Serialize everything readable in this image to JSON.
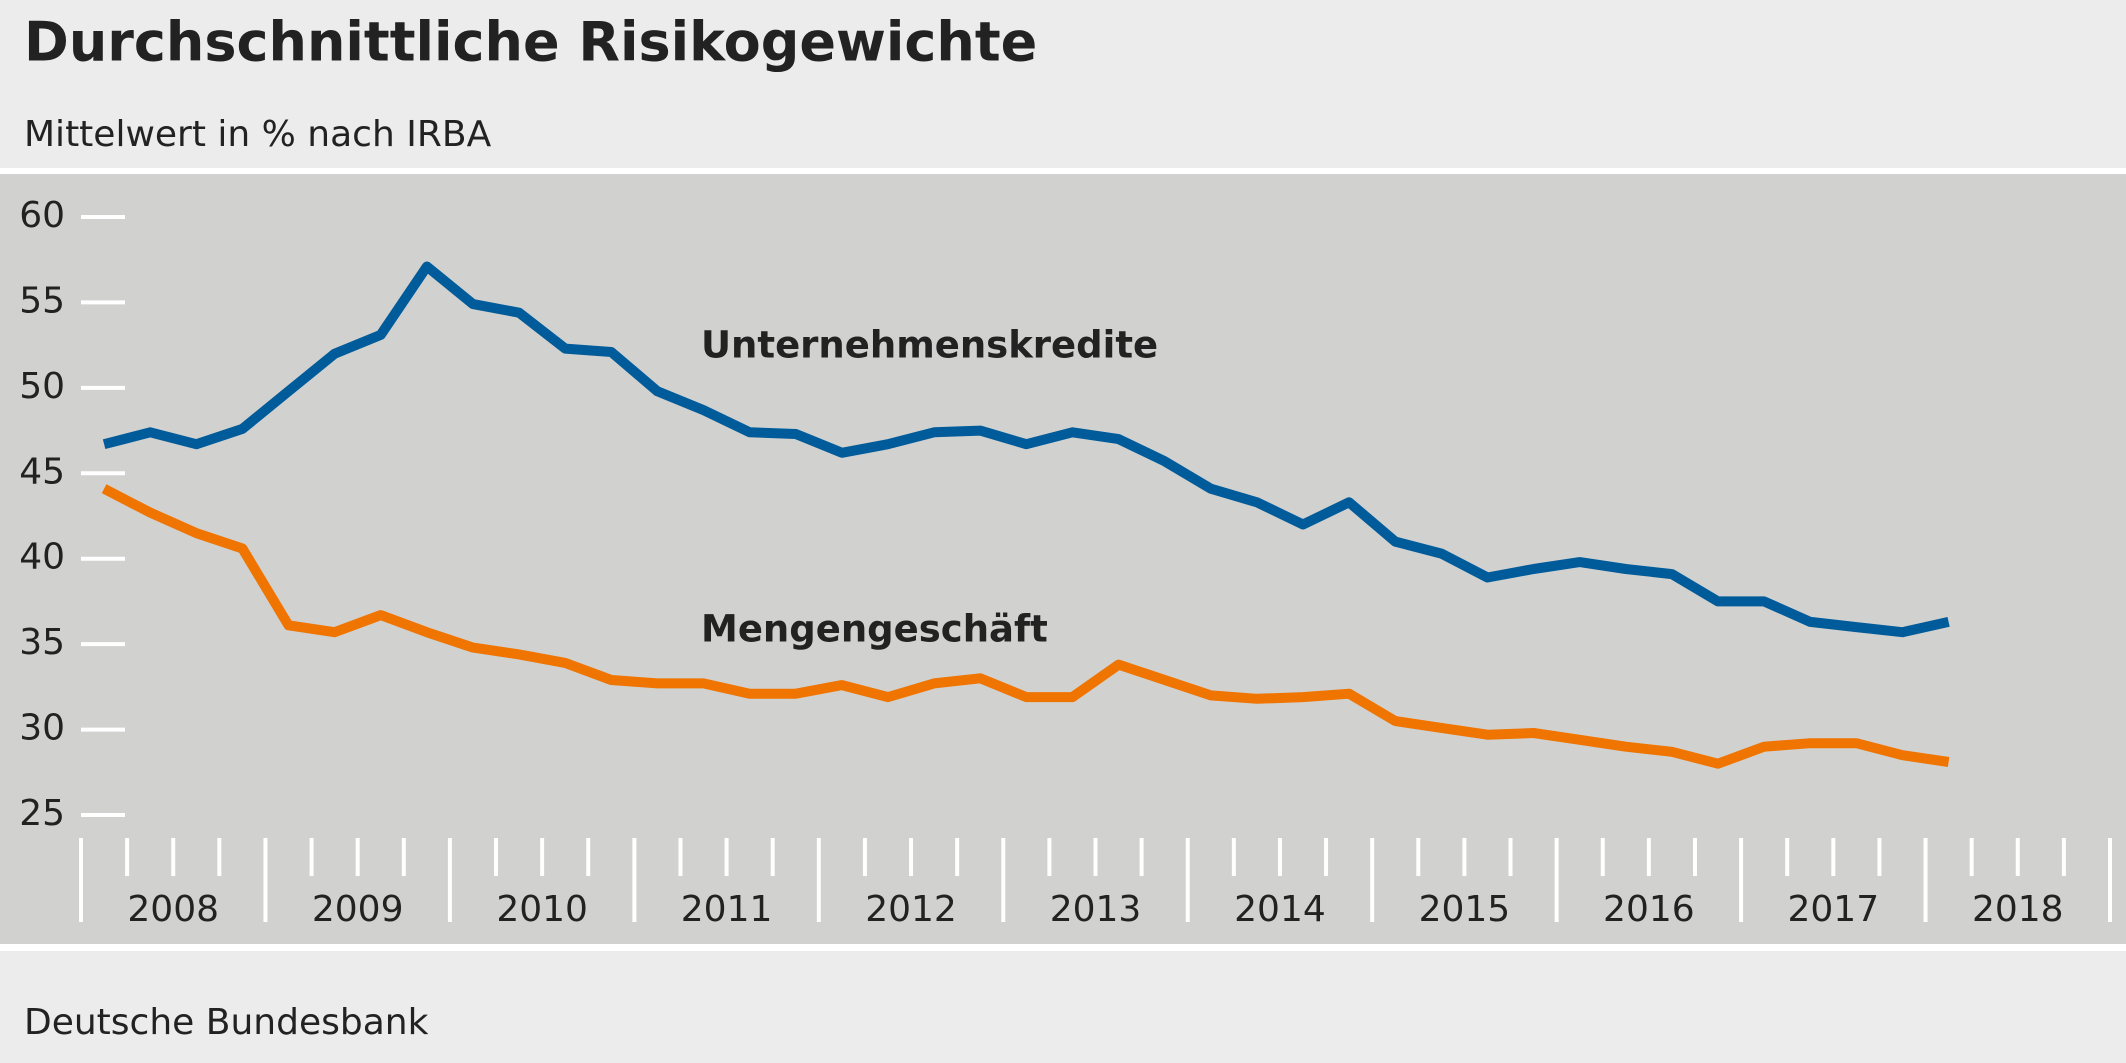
{
  "chart_data": {
    "type": "line",
    "title": "Durchschnittliche Risikogewichte",
    "subtitle": "Mittelwert in % nach IRBA",
    "source": "Deutsche Bundesbank",
    "x": [
      2008.125,
      2008.375,
      2008.625,
      2008.875,
      2009.125,
      2009.375,
      2009.625,
      2009.875,
      2010.125,
      2010.375,
      2010.625,
      2010.875,
      2011.125,
      2011.375,
      2011.625,
      2011.875,
      2012.125,
      2012.375,
      2012.625,
      2012.875,
      2013.125,
      2013.375,
      2013.625,
      2013.875,
      2014.125,
      2014.375,
      2014.625,
      2014.875,
      2015.125,
      2015.375,
      2015.625,
      2015.875,
      2016.125,
      2016.375,
      2016.625,
      2016.875,
      2017.125,
      2017.375,
      2017.625,
      2017.875,
      2018.125
    ],
    "xlim": [
      2008,
      2019
    ],
    "xticks": [
      {
        "value": 2008,
        "label": "2008"
      },
      {
        "value": 2009,
        "label": "2009"
      },
      {
        "value": 2010,
        "label": "2010"
      },
      {
        "value": 2011,
        "label": "2011"
      },
      {
        "value": 2012,
        "label": "2012"
      },
      {
        "value": 2013,
        "label": "2013"
      },
      {
        "value": 2014,
        "label": "2014"
      },
      {
        "value": 2015,
        "label": "2015"
      },
      {
        "value": 2016,
        "label": "2016"
      },
      {
        "value": 2017,
        "label": "2017"
      },
      {
        "value": 2018,
        "label": "2018"
      }
    ],
    "ylim": [
      25,
      60
    ],
    "yticks": [
      25,
      30,
      35,
      40,
      45,
      50,
      55,
      60
    ],
    "series": [
      {
        "name": "Unternehmenskredite",
        "color": "#005b9a",
        "values": [
          46.7,
          47.4,
          46.7,
          47.6,
          49.8,
          52.0,
          53.1,
          57.1,
          54.9,
          54.4,
          52.3,
          52.1,
          49.8,
          48.7,
          47.4,
          47.3,
          46.2,
          46.7,
          47.4,
          47.5,
          46.7,
          47.4,
          47.0,
          45.7,
          44.1,
          43.3,
          42.0,
          43.3,
          41.0,
          40.3,
          38.9,
          39.4,
          39.8,
          39.4,
          39.1,
          37.5,
          37.5,
          36.3,
          36.0,
          35.7,
          36.3
        ]
      },
      {
        "name": "Mengengeschäft",
        "color": "#ef7400",
        "values": [
          44.1,
          42.7,
          41.5,
          40.6,
          36.1,
          35.7,
          36.7,
          35.7,
          34.8,
          34.4,
          33.9,
          32.9,
          32.7,
          32.7,
          32.1,
          32.1,
          32.6,
          31.9,
          32.7,
          33.0,
          31.9,
          31.9,
          33.8,
          32.9,
          32.0,
          31.8,
          31.9,
          32.1,
          30.5,
          30.1,
          29.7,
          29.8,
          29.4,
          29.0,
          28.7,
          28.0,
          29.0,
          29.2,
          29.2,
          28.5,
          28.1
        ]
      }
    ]
  }
}
